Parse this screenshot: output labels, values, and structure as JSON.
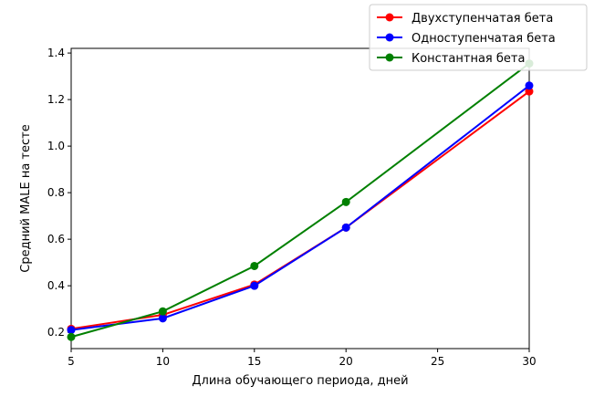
{
  "chart_data": {
    "type": "line",
    "xlabel": "Длина обучающего периода, дней",
    "ylabel": "Средний MALE на тесте",
    "xlim": [
      5,
      30
    ],
    "ylim": [
      0.13,
      1.42
    ],
    "xticks": [
      5,
      10,
      15,
      20,
      25,
      30
    ],
    "yticks": [
      0.2,
      0.4,
      0.6,
      0.8,
      1.0,
      1.2,
      1.4
    ],
    "xtick_labels": [
      "5",
      "10",
      "15",
      "20",
      "25",
      "30"
    ],
    "ytick_labels": [
      "0.2",
      "0.4",
      "0.6",
      "0.8",
      "1.0",
      "1.2",
      "1.4"
    ],
    "grid": false,
    "legend_position": "top-right",
    "x": [
      5,
      10,
      15,
      20,
      30
    ],
    "series": [
      {
        "name": "Двухступенчатая бета",
        "color": "#ff0000",
        "values": [
          0.215,
          0.275,
          0.405,
          0.65,
          1.235
        ]
      },
      {
        "name": "Одноступенчатая бета",
        "color": "#0000ff",
        "values": [
          0.21,
          0.26,
          0.4,
          0.65,
          1.26
        ]
      },
      {
        "name": "Константная бета",
        "color": "#008000",
        "values": [
          0.18,
          0.29,
          0.485,
          0.76,
          1.355
        ]
      }
    ]
  }
}
